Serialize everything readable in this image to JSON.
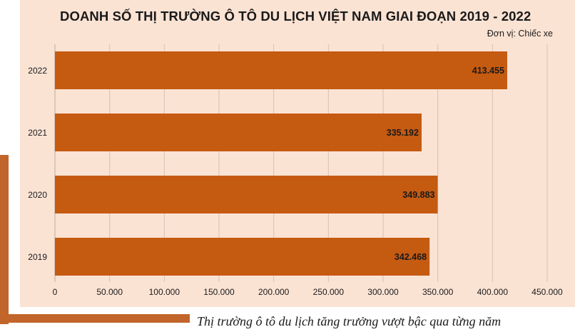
{
  "chart_data": {
    "type": "bar",
    "orientation": "horizontal",
    "title": "DOANH SỐ THỊ TRƯỜNG Ô TÔ DU LỊCH VIỆT NAM GIAI ĐOẠN 2019 - 2022",
    "unit_label": "Đơn vị: Chiếc xe",
    "categories": [
      "2022",
      "2021",
      "2020",
      "2019"
    ],
    "values": [
      413455,
      335192,
      349883,
      342468
    ],
    "value_labels": [
      "413.455",
      "335.192",
      "349.883",
      "342.468"
    ],
    "xlim": [
      0,
      450000
    ],
    "xticks": [
      0,
      50000,
      100000,
      150000,
      200000,
      250000,
      300000,
      350000,
      400000,
      450000
    ],
    "xtick_labels": [
      "0",
      "50.000",
      "100.000",
      "150.000",
      "200.000",
      "250.000",
      "300.000",
      "350.000",
      "400.000",
      "450.000"
    ],
    "grid": true,
    "bar_color": "#c55a11",
    "background_color": "#fbe3d4"
  },
  "caption": "Thị trường ô tô du lịch tăng trưởng vượt bậc qua từng năm",
  "colors": {
    "accent": "#c1652b",
    "bar": "#c55a11",
    "panel": "#fbe3d4"
  }
}
